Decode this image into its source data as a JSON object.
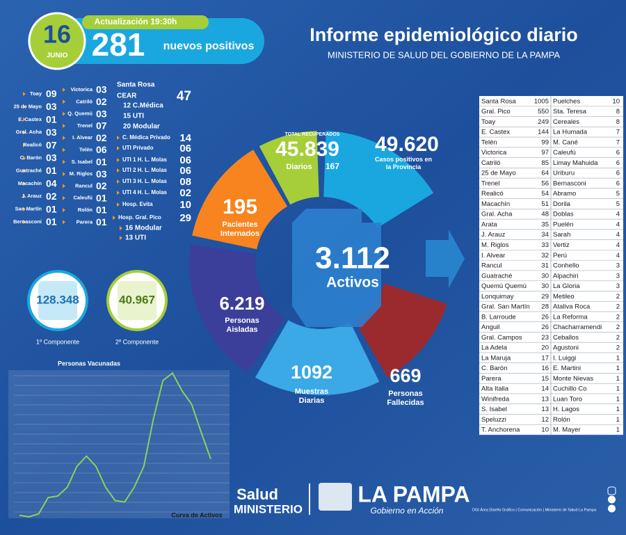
{
  "header": {
    "day": "16",
    "month": "JUNIO",
    "update": "Actualización 19:30h",
    "new_positives": "281",
    "new_positives_label": "nuevos positivos",
    "title": "Informe epidemiológico diario",
    "subtitle": "MINISTERIO DE SALUD DEL GOBIERNO DE LA PAMPA"
  },
  "localities": {
    "col1": [
      {
        "name": "Toay",
        "value": "09"
      },
      {
        "name": "25 de Mayo",
        "value": "03"
      },
      {
        "name": "E. Castex",
        "value": "01"
      },
      {
        "name": "Gral. Acha",
        "value": "03"
      },
      {
        "name": "Realicó",
        "value": "07"
      },
      {
        "name": "C. Barón",
        "value": "03"
      },
      {
        "name": "Guatraché",
        "value": "01"
      },
      {
        "name": "Macachín",
        "value": "04"
      },
      {
        "name": "J. Arauz",
        "value": "02"
      },
      {
        "name": "San Martín",
        "value": "01"
      },
      {
        "name": "Bernasconi",
        "value": "01"
      }
    ],
    "col2": [
      {
        "name": "Victorica",
        "value": "03"
      },
      {
        "name": "Catriló",
        "value": "02"
      },
      {
        "name": "Q. Quemú",
        "value": "03"
      },
      {
        "name": "Trenel",
        "value": "07"
      },
      {
        "name": "I. Alvear",
        "value": "02"
      },
      {
        "name": "Telén",
        "value": "06"
      },
      {
        "name": "S. Isabel",
        "value": "01"
      },
      {
        "name": "M. Riglos",
        "value": "03"
      },
      {
        "name": "Rancul",
        "value": "02"
      },
      {
        "name": "Caleufú",
        "value": "01"
      },
      {
        "name": "Rolón",
        "value": "01"
      },
      {
        "name": "Parera",
        "value": "01"
      }
    ]
  },
  "hospitals": [
    {
      "label": "Santa Rosa"
    },
    {
      "label": "CEAR",
      "value": "47"
    },
    {
      "label": "12 C.Médica"
    },
    {
      "label": "15 UTI"
    },
    {
      "label": "20 Modular"
    },
    {
      "label": "C. Médica Privado",
      "value": "14"
    },
    {
      "label": "UTI Privado",
      "value": "06"
    },
    {
      "label": "UTI 1 H. L. Molas",
      "value": "06"
    },
    {
      "label": "UTI 2 H. L. Molas",
      "value": "06"
    },
    {
      "label": "UTI 3 H. L. Molas",
      "value": "08"
    },
    {
      "label": "UTI 4 H. L. Molas",
      "value": "02"
    },
    {
      "label": "Hosp. Evita",
      "value": "10"
    },
    {
      "label": "Hosp. Gral. Pico",
      "value": "29"
    },
    {
      "label": "16 Modular"
    },
    {
      "label": "13 UTI"
    }
  ],
  "components": [
    {
      "value": "128.348",
      "label": "1º Componente"
    },
    {
      "value": "40.967",
      "label": "2º Componente"
    }
  ],
  "summary": {
    "recovered": {
      "label": "TOTAL RECUPERADOS",
      "value": "45.839",
      "daily_label": "Diarios",
      "daily": "167"
    },
    "positives": {
      "value": "49.620",
      "label": "Casos positivos en la Provincia"
    },
    "hospitalized": {
      "value": "195",
      "label": "Pacientes Internados"
    },
    "active": {
      "value": "3.112",
      "label": "Activos"
    },
    "isolated": {
      "value": "6.219",
      "label": "Personas Aisladas"
    },
    "samples": {
      "value": "1092",
      "label": "Muestras Diarias"
    },
    "deaths": {
      "value": "669",
      "label": "Personas Fallecidas"
    }
  },
  "table": {
    "rows": [
      [
        "Santa Rosa",
        1005,
        "Puelches",
        10
      ],
      [
        "Gral. Pico",
        550,
        "Sta. Teresa",
        8
      ],
      [
        "Toay",
        249,
        "Cereales",
        8
      ],
      [
        "E. Castex",
        144,
        "La Humada",
        7
      ],
      [
        "Telén",
        99,
        "M. Cané",
        7
      ],
      [
        "Victorica",
        97,
        "Caleufú",
        6
      ],
      [
        "Catriló",
        85,
        "Limay Mahuida",
        6
      ],
      [
        "25 de Mayo",
        64,
        "Uriburu",
        6
      ],
      [
        "Trenel",
        56,
        "Bernasconi",
        6
      ],
      [
        "Realicó",
        54,
        "Abramo",
        5
      ],
      [
        "Macachín",
        51,
        "Dorila",
        5
      ],
      [
        "Gral. Acha",
        48,
        "Doblas",
        4
      ],
      [
        "Arata",
        35,
        "Puelén",
        4
      ],
      [
        "J. Arauz",
        34,
        "Sarah",
        4
      ],
      [
        "M. Riglos",
        33,
        "Vertiz",
        4
      ],
      [
        "I. Alvear",
        32,
        "Perú",
        4
      ],
      [
        "Rancul",
        31,
        "Conhello",
        3
      ],
      [
        "Guatraché",
        30,
        "Alpachiri",
        3
      ],
      [
        "Quemú Quemú",
        30,
        "La Gloria",
        3
      ],
      [
        "Lonquimay",
        29,
        "Metileo",
        2
      ],
      [
        "Gral. San Martín",
        28,
        "Ataliva Roca",
        2
      ],
      [
        "B. Larroude",
        26,
        "La Reforma",
        2
      ],
      [
        "Anguil",
        26,
        "Chacharramendi",
        2
      ],
      [
        "Gral. Campos",
        23,
        "Ceballos",
        2
      ],
      [
        "La Adela",
        20,
        "Agustoni",
        2
      ],
      [
        "La Maruja",
        17,
        "I. Luiggi",
        1
      ],
      [
        "C. Barón",
        16,
        "E. Martini",
        1
      ],
      [
        "Parera",
        15,
        "Monte Nievas",
        1
      ],
      [
        "Alta Italia",
        14,
        "Cuchillo Co",
        1
      ],
      [
        "Winifreda",
        13,
        "Luan Toro",
        1
      ],
      [
        "S. Isabel",
        13,
        "H. Lagos",
        1
      ],
      [
        "Speluzzi",
        12,
        "Rolón",
        1
      ],
      [
        "T. Anchorena",
        10,
        "M. Mayer",
        1
      ]
    ]
  },
  "curve": {
    "title": "Personas Vacunadas",
    "label": "Curva de Activos",
    "values": [
      2,
      1,
      3,
      14,
      15,
      21,
      35,
      42,
      35,
      21,
      12,
      11,
      21,
      35,
      67,
      93,
      98,
      86,
      77,
      58,
      40
    ]
  },
  "footer": {
    "salud": "Salud",
    "ministerio": "MINISTERIO",
    "brand": "LA PAMPA",
    "slogan": "Gobierno en Acción",
    "credits": "DGI Área Diseño Gráfico | Comunicación | Ministerio de Salud La Pampa"
  }
}
